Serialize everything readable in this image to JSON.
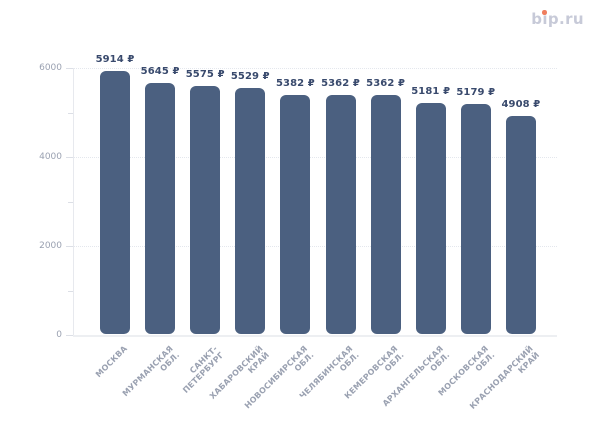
{
  "page": {
    "background": "#ffffff"
  },
  "logo": {
    "text": "bip.ru",
    "color": "#c7cad8",
    "dot_color": "#ef7e5e"
  },
  "chart_data": {
    "type": "bar",
    "title": "",
    "xlabel": "",
    "ylabel": "",
    "categories": [
      "МОСКВА",
      "МУРМАНСКАЯ ОБЛ.",
      "САНКТ-ПЕТЕРБУРГ",
      "ХАБАРОВСКИЙ КРАЙ",
      "НОВОСИБИРСКАЯ ОБЛ.",
      "ЧЕЛЯБИНСКАЯ ОБЛ.",
      "КЕМЕРОВСКАЯ ОБЛ.",
      "АРХАНГЕЛЬСКАЯ ОБЛ.",
      "МОСКОВСКАЯ ОБЛ.",
      "КРАСНОДАРСКИЙ КРАЙ"
    ],
    "categories_multiline": [
      [
        "МОСКВА"
      ],
      [
        "МУРМАНСКАЯ",
        "ОБЛ."
      ],
      [
        "САНКТ-",
        "ПЕТЕРБУРГ"
      ],
      [
        "ХАБАРОВСКИЙ",
        "КРАЙ"
      ],
      [
        "НОВОСИБИРСКАЯ",
        "ОБЛ."
      ],
      [
        "ЧЕЛЯБИНСКАЯ",
        "ОБЛ."
      ],
      [
        "КЕМЕРОВСКАЯ",
        "ОБЛ."
      ],
      [
        "АРХАНГЕЛЬСКАЯ",
        "ОБЛ."
      ],
      [
        "МОСКОВСКАЯ",
        "ОБЛ."
      ],
      [
        "КРАСНОДАРСКИЙ",
        "КРАЙ"
      ]
    ],
    "values": [
      5914,
      5645,
      5575,
      5529,
      5382,
      5362,
      5362,
      5181,
      5179,
      4908
    ],
    "currency_suffix": "₽",
    "value_labels": [
      "5914 ₽",
      "5645 ₽",
      "5575 ₽",
      "5529 ₽",
      "5382 ₽",
      "5362 ₽",
      "5362 ₽",
      "5181 ₽",
      "5179 ₽",
      "4908 ₽"
    ],
    "ylim": [
      0,
      6000
    ],
    "y_ticks": [
      0,
      2000,
      4000,
      6000
    ],
    "y_minor_ticks": [
      1000,
      3000,
      5000
    ],
    "grid": true,
    "legend": null,
    "style": {
      "bar_color": "#4b6080",
      "value_label_color": "#394a6d",
      "axis_label_color": "#9aa1b1"
    }
  }
}
